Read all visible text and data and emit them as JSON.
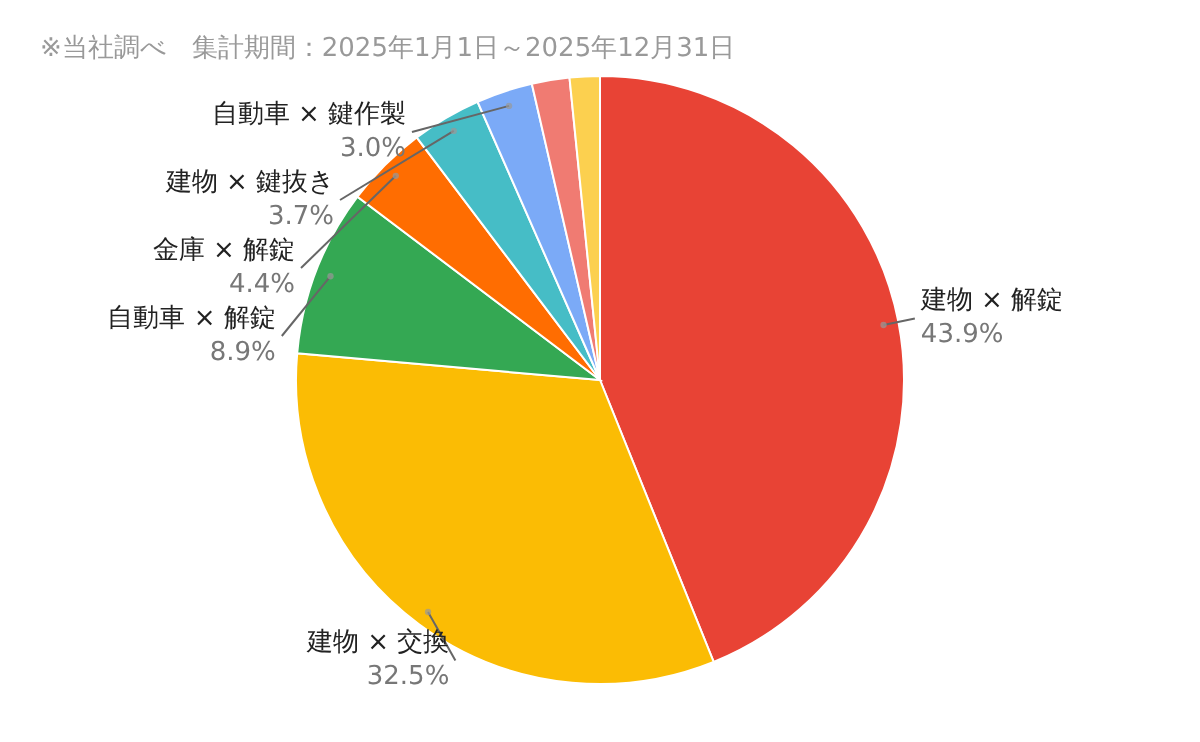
{
  "chart_data": {
    "type": "pie",
    "annotations": [
      "※当社調べ　集計期間：2025年1月1日～2025年12月31日"
    ],
    "categories": [
      "建物 × 解錠",
      "建物 × 交換",
      "自動車 × 解錠",
      "金庫 × 解錠",
      "建物 × 鍵抜き",
      "自動車 × 鍵作製",
      null,
      null
    ],
    "values": [
      43.9,
      32.5,
      8.9,
      4.4,
      3.7,
      3.0,
      2.0,
      1.6
    ],
    "value_labels": [
      "43.9%",
      "32.5%",
      "8.9%",
      "4.4%",
      "3.7%",
      "3.0%",
      null,
      null
    ],
    "colors": [
      "#e84335",
      "#fbbc04",
      "#34a853",
      "#ff6d01",
      "#46bdc6",
      "#7baaf7",
      "#f07b72",
      "#fcd04f"
    ]
  }
}
